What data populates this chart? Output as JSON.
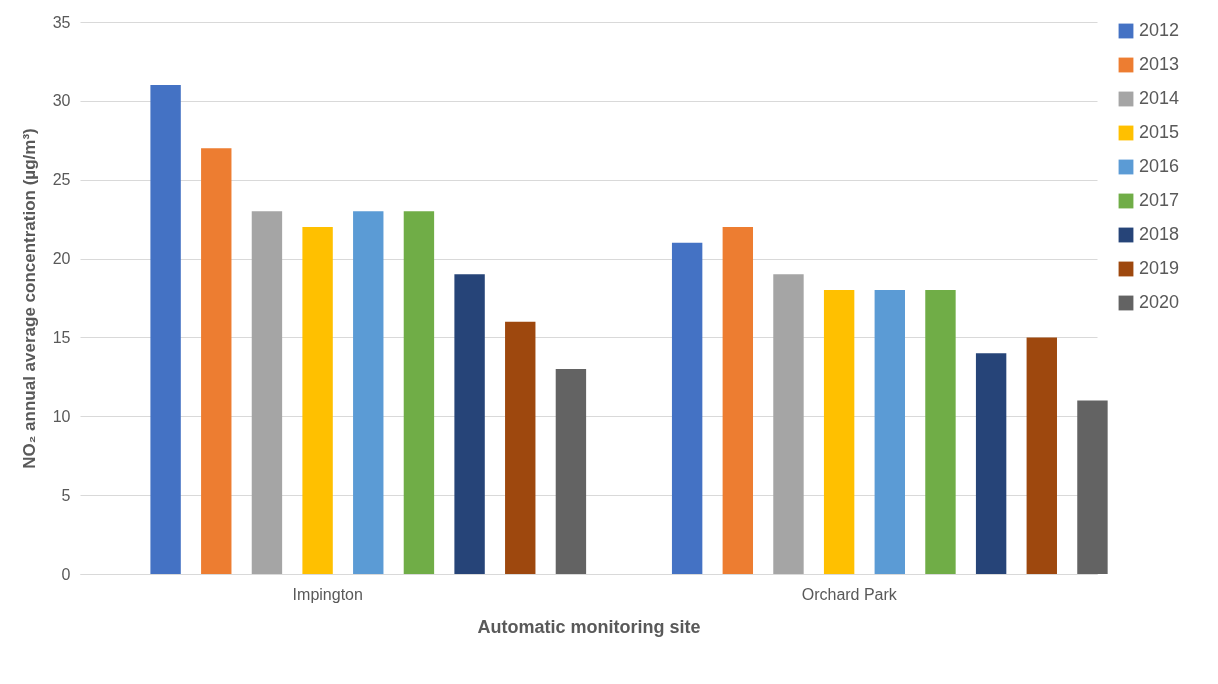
{
  "chart_data": {
    "type": "bar",
    "xlabel": "Automatic monitoring site",
    "ylabel": "NO₂ annual average concentration (µg/m³)",
    "categories": [
      "Impington",
      "Orchard Park"
    ],
    "series": [
      {
        "name": "2012",
        "color": "#4472c4",
        "values": [
          31,
          21
        ]
      },
      {
        "name": "2013",
        "color": "#ed7d31",
        "values": [
          27,
          22
        ]
      },
      {
        "name": "2014",
        "color": "#a5a5a5",
        "values": [
          23,
          19
        ]
      },
      {
        "name": "2015",
        "color": "#ffc000",
        "values": [
          22,
          18
        ]
      },
      {
        "name": "2016",
        "color": "#5b9bd5",
        "values": [
          23,
          18
        ]
      },
      {
        "name": "2017",
        "color": "#70ad47",
        "values": [
          23,
          18
        ]
      },
      {
        "name": "2018",
        "color": "#264478",
        "values": [
          19,
          14
        ]
      },
      {
        "name": "2019",
        "color": "#9e480e",
        "values": [
          16,
          15
        ]
      },
      {
        "name": "2020",
        "color": "#636363",
        "values": [
          13,
          11
        ]
      }
    ],
    "ylim": [
      0,
      35
    ],
    "yticks": [
      0,
      5,
      10,
      15,
      20,
      25,
      30,
      35
    ],
    "grid": "y",
    "legend": "right"
  }
}
